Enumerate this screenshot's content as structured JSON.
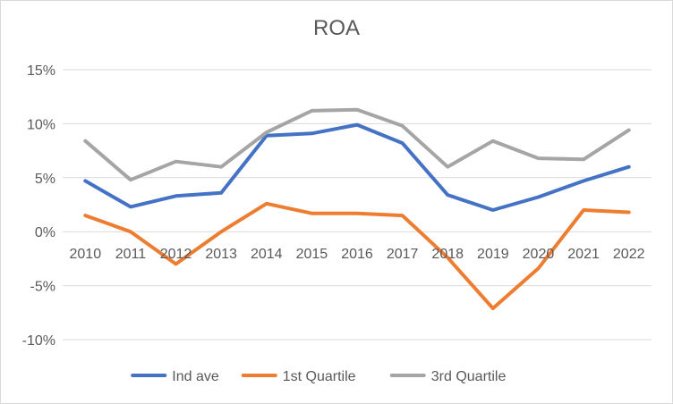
{
  "chart_data": {
    "type": "line",
    "title": "ROA",
    "xlabel": "",
    "ylabel": "",
    "categories": [
      "2010",
      "2011",
      "2012",
      "2013",
      "2014",
      "2015",
      "2016",
      "2017",
      "2018",
      "2019",
      "2020",
      "2021",
      "2022"
    ],
    "ylim": [
      -10,
      15
    ],
    "yticks": [
      -10,
      -5,
      0,
      5,
      10,
      15
    ],
    "ytick_labels": [
      "-10%",
      "-5%",
      "0%",
      "5%",
      "10%",
      "15%"
    ],
    "grid": true,
    "legend_position": "bottom",
    "series": [
      {
        "name": "Ind ave",
        "color": "#4472c4",
        "values": [
          4.7,
          2.3,
          3.3,
          3.6,
          8.9,
          9.1,
          9.9,
          8.2,
          3.4,
          2.0,
          3.2,
          4.7,
          6.0
        ]
      },
      {
        "name": "1st Quartile",
        "color": "#ed7d31",
        "values": [
          1.5,
          0.0,
          -3.0,
          0.0,
          2.6,
          1.7,
          1.7,
          1.5,
          -2.4,
          -7.1,
          -3.4,
          2.0,
          1.8
        ]
      },
      {
        "name": "3rd Quartile",
        "color": "#a5a5a5",
        "values": [
          8.4,
          4.8,
          6.5,
          6.0,
          9.2,
          11.2,
          11.3,
          9.8,
          6.0,
          8.4,
          6.8,
          6.7,
          9.4
        ]
      }
    ]
  }
}
